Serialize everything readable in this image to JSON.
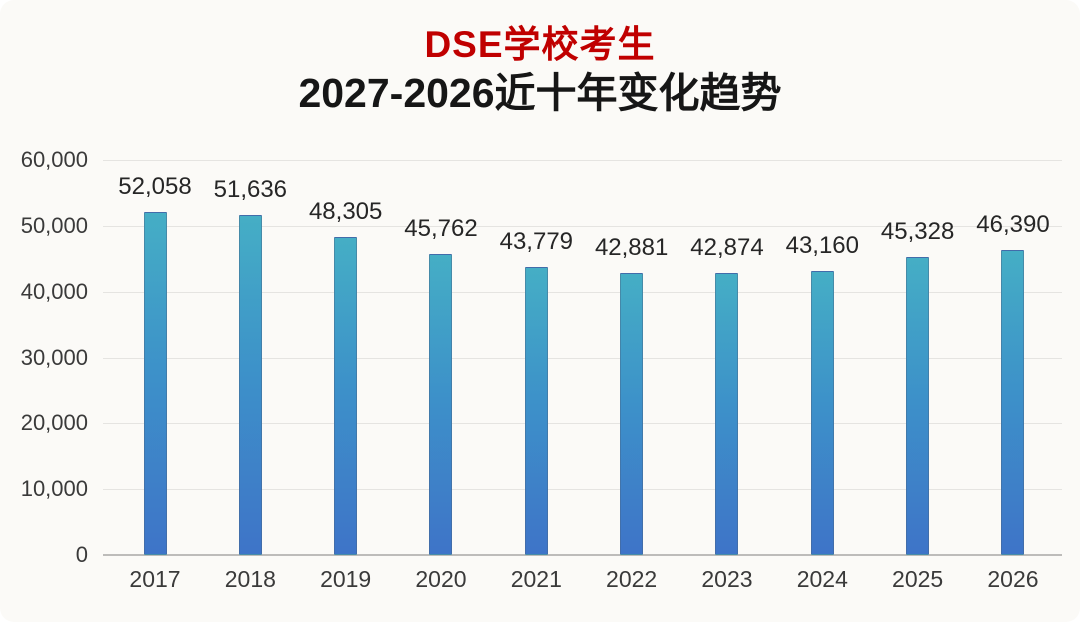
{
  "header": {
    "title": "DSE学校考生",
    "title_color": "#c00000",
    "subtitle": "2027-2026近十年变化趋势"
  },
  "chart_data": {
    "type": "bar",
    "title": "DSE学校考生",
    "subtitle": "2027-2026近十年变化趋势",
    "categories": [
      "2017",
      "2018",
      "2019",
      "2020",
      "2021",
      "2022",
      "2023",
      "2024",
      "2025",
      "2026"
    ],
    "values": [
      52058,
      51636,
      48305,
      45762,
      43779,
      42881,
      42874,
      43160,
      45328,
      46390
    ],
    "value_labels": [
      "52,058",
      "51,636",
      "48,305",
      "45,762",
      "43,779",
      "42,881",
      "42,874",
      "43,160",
      "45,328",
      "46,390"
    ],
    "xlabel": "",
    "ylabel": "",
    "ylim": [
      0,
      60000
    ],
    "ytick_interval": 10000,
    "ytick_labels": [
      "0",
      "10,000",
      "20,000",
      "30,000",
      "40,000",
      "50,000",
      "60,000"
    ],
    "grid": true,
    "legend_position": "none",
    "colors": {
      "bar_gradient_top": "#45aec5",
      "bar_gradient_mid": "#3d92c9",
      "bar_gradient_bottom": "#3e74c8",
      "gridline": "#e5e4e1",
      "axis_line": "#bdbcba",
      "label_text": "#262626",
      "title_red": "#c00000"
    }
  }
}
